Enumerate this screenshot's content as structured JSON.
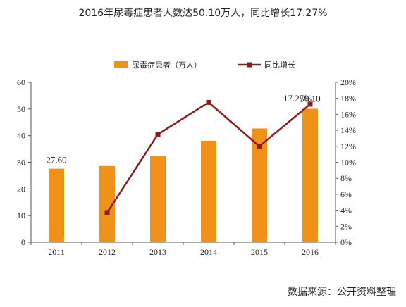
{
  "title": "2016年尿毒症患者人数达50.10万人，同比增长17.27%",
  "source": "数据来源：公开资料整理",
  "colors": {
    "bar": "#f0921a",
    "line": "#8b1a1a",
    "axis": "#555555"
  },
  "chart_data": {
    "type": "bar",
    "categories": [
      "2011",
      "2012",
      "2013",
      "2014",
      "2015",
      "2016"
    ],
    "series": [
      {
        "name": "尿毒症患者（万人）",
        "type": "bar",
        "axis": "left",
        "values": [
          27.6,
          28.6,
          32.4,
          38.1,
          42.7,
          50.1
        ]
      },
      {
        "name": "同比增长",
        "type": "line",
        "axis": "right",
        "values": [
          null,
          3.7,
          13.5,
          17.5,
          12.0,
          17.27
        ]
      }
    ],
    "ylim_left": [
      0,
      60
    ],
    "yticks_left": [
      "0",
      "10",
      "20",
      "30",
      "40",
      "50",
      "60"
    ],
    "ylim_right": [
      0,
      20
    ],
    "yticks_right": [
      "0%",
      "2%",
      "4%",
      "6%",
      "8%",
      "10%",
      "12%",
      "14%",
      "16%",
      "18%",
      "20%"
    ],
    "data_labels": [
      {
        "series": 0,
        "index": 0,
        "text": "27.60"
      },
      {
        "series": 0,
        "index": 5,
        "text": "50.10"
      },
      {
        "series": 1,
        "index": 5,
        "text": "17.27%"
      }
    ],
    "legend_position": "top-center",
    "grid": false
  }
}
